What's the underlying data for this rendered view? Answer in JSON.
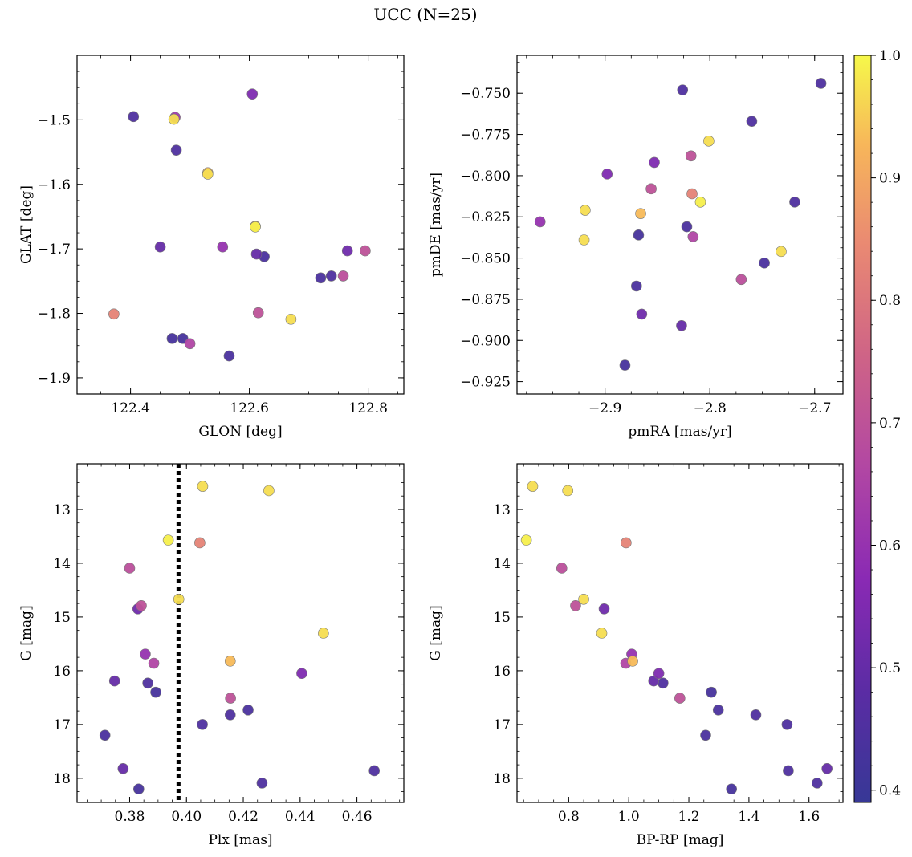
{
  "figure": {
    "title": "UCC (N=25)",
    "colorbar": {
      "min": 0.39,
      "max": 1.0,
      "ticks": [
        "0.4",
        "0.5",
        "0.6",
        "0.7",
        "0.8",
        "0.9",
        "1.0"
      ],
      "tick_values": [
        0.4,
        0.5,
        0.6,
        0.7,
        0.8,
        0.9,
        1.0
      ],
      "colormap": "plasma"
    },
    "vline_color": "#000000"
  },
  "chart_data": [
    {
      "id": "glon_glat",
      "type": "scatter",
      "xlabel": "GLON [deg]",
      "ylabel": "GLAT [deg]",
      "xlim": [
        122.31,
        122.86
      ],
      "ylim": [
        -1.925,
        -1.4
      ],
      "y_inverted": false,
      "xticks": [
        122.4,
        122.6,
        122.8
      ],
      "xtick_labels": [
        "122.4",
        "122.6",
        "122.8"
      ],
      "yticks": [
        -1.5,
        -1.6,
        -1.7,
        -1.8,
        -1.9
      ],
      "ytick_labels": [
        "−1.5",
        "−1.6",
        "−1.7",
        "−1.8",
        "−1.9"
      ],
      "x": [
        122.405,
        122.475,
        122.473,
        122.477,
        122.53,
        122.53,
        122.605,
        122.61,
        122.61,
        122.625,
        122.45,
        122.555,
        122.765,
        122.795,
        122.72,
        122.738,
        122.758,
        122.372,
        122.615,
        122.67,
        122.47,
        122.488,
        122.5,
        122.566,
        122.612
      ],
      "y": [
        -1.495,
        -1.496,
        -1.499,
        -1.547,
        -1.582,
        -1.584,
        -1.46,
        -1.665,
        -1.666,
        -1.712,
        -1.697,
        -1.697,
        -1.703,
        -1.703,
        -1.745,
        -1.742,
        -1.742,
        -1.801,
        -1.799,
        -1.809,
        -1.839,
        -1.839,
        -1.847,
        -1.866,
        -1.708
      ],
      "color_values": [
        0.45,
        0.62,
        0.97,
        0.45,
        0.93,
        0.97,
        0.55,
        0.93,
        0.99,
        0.44,
        0.5,
        0.6,
        0.52,
        0.7,
        0.44,
        0.45,
        0.69,
        0.83,
        0.7,
        0.97,
        0.43,
        0.43,
        0.66,
        0.44,
        0.5
      ]
    },
    {
      "id": "pmra_pmde",
      "type": "scatter",
      "xlabel": "pmRA [mas/yr]",
      "ylabel": "pmDE [mas/yr]",
      "xlim": [
        -2.984,
        -2.673
      ],
      "ylim": [
        -0.9325,
        -0.727
      ],
      "y_inverted": false,
      "xticks": [
        -2.9,
        -2.8,
        -2.7
      ],
      "xtick_labels": [
        "−2.9",
        "−2.8",
        "−2.7"
      ],
      "yticks": [
        -0.75,
        -0.775,
        -0.8,
        -0.825,
        -0.85,
        -0.875,
        -0.9,
        -0.925
      ],
      "ytick_labels": [
        "−0.750",
        "−0.775",
        "−0.800",
        "−0.825",
        "−0.850",
        "−0.875",
        "−0.900",
        "−0.925"
      ],
      "x": [
        -2.694,
        -2.826,
        -2.76,
        -2.801,
        -2.818,
        -2.853,
        -2.898,
        -2.856,
        -2.817,
        -2.809,
        -2.719,
        -2.919,
        -2.962,
        -2.866,
        -2.92,
        -2.868,
        -2.822,
        -2.816,
        -2.748,
        -2.732,
        -2.77,
        -2.87,
        -2.865,
        -2.827,
        -2.881
      ],
      "y": [
        -0.744,
        -0.748,
        -0.767,
        -0.779,
        -0.788,
        -0.792,
        -0.799,
        -0.808,
        -0.811,
        -0.816,
        -0.816,
        -0.821,
        -0.828,
        -0.823,
        -0.839,
        -0.836,
        -0.831,
        -0.837,
        -0.853,
        -0.846,
        -0.863,
        -0.867,
        -0.884,
        -0.891,
        -0.915
      ],
      "color_values": [
        0.45,
        0.45,
        0.45,
        0.97,
        0.7,
        0.55,
        0.55,
        0.7,
        0.83,
        0.99,
        0.45,
        0.97,
        0.6,
        0.93,
        0.97,
        0.43,
        0.44,
        0.66,
        0.44,
        0.97,
        0.69,
        0.44,
        0.52,
        0.5,
        0.43
      ]
    },
    {
      "id": "plx_g",
      "type": "scatter",
      "xlabel": "Plx [mas]",
      "ylabel": "G [mag]",
      "xlim": [
        0.3615,
        0.4765
      ],
      "ylim": [
        12.15,
        18.45
      ],
      "y_inverted": true,
      "xticks": [
        0.38,
        0.4,
        0.42,
        0.44,
        0.46
      ],
      "xtick_labels": [
        "0.38",
        "0.40",
        "0.42",
        "0.44",
        "0.46"
      ],
      "yticks": [
        13,
        14,
        15,
        16,
        17,
        18
      ],
      "ytick_labels": [
        "13",
        "14",
        "15",
        "16",
        "17",
        "18"
      ],
      "vline_x": 0.3972,
      "x": [
        0.4057,
        0.429,
        0.3936,
        0.4047,
        0.38,
        0.3841,
        0.3829,
        0.3973,
        0.4482,
        0.3855,
        0.4154,
        0.3885,
        0.4406,
        0.3747,
        0.3864,
        0.3892,
        0.4155,
        0.3713,
        0.4056,
        0.4154,
        0.4217,
        0.3777,
        0.4661,
        0.4266,
        0.3832
      ],
      "y": [
        12.57,
        12.65,
        13.57,
        13.62,
        14.09,
        14.79,
        14.85,
        14.67,
        15.3,
        15.69,
        15.82,
        15.86,
        16.05,
        16.19,
        16.23,
        16.4,
        16.51,
        17.2,
        17.0,
        16.82,
        16.73,
        17.82,
        17.86,
        18.09,
        18.2
      ],
      "color_values": [
        0.97,
        0.97,
        0.99,
        0.83,
        0.69,
        0.7,
        0.52,
        0.97,
        0.97,
        0.6,
        0.93,
        0.66,
        0.55,
        0.5,
        0.45,
        0.43,
        0.7,
        0.44,
        0.45,
        0.45,
        0.44,
        0.5,
        0.45,
        0.45,
        0.43
      ]
    },
    {
      "id": "bprp_g",
      "type": "scatter",
      "xlabel": "BP-RP [mag]",
      "ylabel": "G [mag]",
      "xlim": [
        0.628,
        1.713
      ],
      "ylim": [
        12.15,
        18.45
      ],
      "y_inverted": true,
      "xticks": [
        0.8,
        1.0,
        1.2,
        1.4,
        1.6
      ],
      "xtick_labels": [
        "0.8",
        "1.0",
        "1.2",
        "1.4",
        "1.6"
      ],
      "yticks": [
        13,
        14,
        15,
        16,
        17,
        18
      ],
      "ytick_labels": [
        "13",
        "14",
        "15",
        "16",
        "17",
        "18"
      ],
      "x": [
        0.68,
        0.797,
        0.659,
        0.991,
        0.777,
        0.823,
        0.918,
        0.85,
        0.91,
        1.01,
        1.013,
        0.99,
        1.1,
        1.083,
        1.114,
        1.275,
        1.17,
        1.256,
        1.527,
        1.423,
        1.298,
        1.66,
        1.531,
        1.627,
        1.342
      ],
      "y": [
        12.57,
        12.65,
        13.57,
        13.62,
        14.09,
        14.79,
        14.85,
        14.67,
        15.3,
        15.69,
        15.82,
        15.86,
        16.05,
        16.19,
        16.23,
        16.4,
        16.51,
        17.2,
        17.0,
        16.82,
        16.73,
        17.82,
        17.86,
        18.09,
        18.2
      ],
      "color_values": [
        0.97,
        0.97,
        0.99,
        0.83,
        0.69,
        0.7,
        0.52,
        0.97,
        0.97,
        0.6,
        0.93,
        0.66,
        0.55,
        0.5,
        0.45,
        0.43,
        0.7,
        0.44,
        0.45,
        0.45,
        0.44,
        0.5,
        0.45,
        0.45,
        0.43
      ]
    }
  ]
}
